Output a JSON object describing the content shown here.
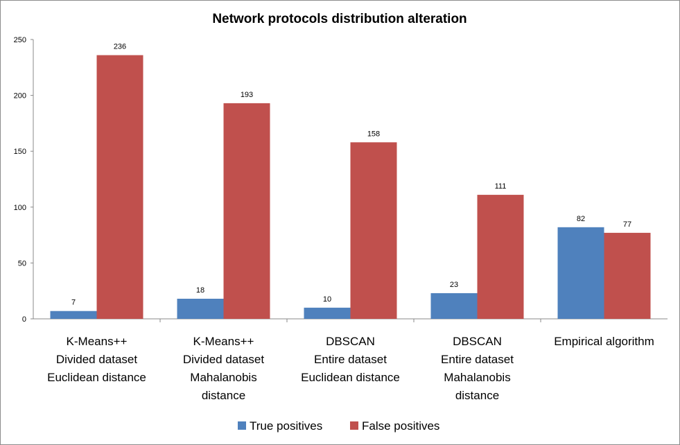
{
  "chart_data": {
    "type": "bar",
    "title": "Network protocols distribution alteration",
    "xlabel": "",
    "ylabel": "",
    "ylim": [
      0,
      250
    ],
    "yticks": [
      0,
      50,
      100,
      150,
      200,
      250
    ],
    "grid": false,
    "legend_position": "bottom",
    "categories": [
      [
        "K-Means++",
        "Divided dataset",
        "Euclidean distance"
      ],
      [
        "K-Means++",
        "Divided dataset",
        "Mahalanobis",
        "distance"
      ],
      [
        "DBSCAN",
        "Entire dataset",
        "Euclidean distance"
      ],
      [
        "DBSCAN",
        "Entire dataset",
        "Mahalanobis",
        "distance"
      ],
      [
        "Empirical algorithm"
      ]
    ],
    "series": [
      {
        "name": "True positives",
        "color": "#4f81bd",
        "values": [
          7,
          18,
          10,
          23,
          82
        ]
      },
      {
        "name": "False positives",
        "color": "#c0504d",
        "values": [
          236,
          193,
          158,
          111,
          77
        ]
      }
    ]
  }
}
